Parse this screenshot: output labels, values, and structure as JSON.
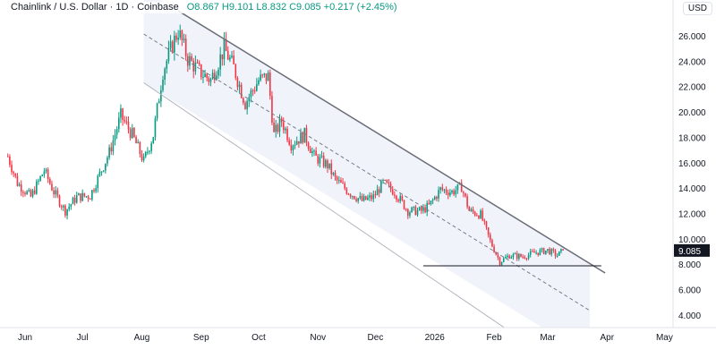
{
  "header": {
    "symbol": "Chainlink / U.S. Dollar · 1D · Coinbase",
    "ohlc": "O8.867 H9.101 L8.832 C9.085 +0.217 (+2.45%)",
    "currency": "USD"
  },
  "colors": {
    "up": "#089981",
    "down": "#f23645",
    "channel": "#787b86",
    "fill": "#f0f3fa"
  },
  "chart_data": {
    "type": "candlestick",
    "title": "Chainlink / U.S. Dollar · 1D · Coinbase",
    "ylim": [
      3,
      28
    ],
    "y_ticks": [
      "4.000",
      "6.000",
      "8.000",
      "10.000",
      "12.000",
      "14.000",
      "16.000",
      "18.000",
      "20.000",
      "22.000",
      "24.000",
      "26.000"
    ],
    "x_ticks": [
      {
        "label": "Jun",
        "day": 0
      },
      {
        "label": "Jul",
        "day": 30
      },
      {
        "label": "Aug",
        "day": 61
      },
      {
        "label": "Sep",
        "day": 92
      },
      {
        "label": "Oct",
        "day": 122
      },
      {
        "label": "Nov",
        "day": 153
      },
      {
        "label": "Dec",
        "day": 183
      },
      {
        "label": "2026",
        "day": 214
      },
      {
        "label": "Feb",
        "day": 245
      },
      {
        "label": "Mar",
        "day": 273
      },
      {
        "label": "Apr",
        "day": 304
      },
      {
        "label": "May",
        "day": 334
      }
    ],
    "xlim_days": [
      -13,
      338
    ],
    "last_price": "9.085",
    "close_anchors": [
      [
        -9,
        16.5
      ],
      [
        -4,
        14.4
      ],
      [
        3,
        13.3
      ],
      [
        10,
        15.4
      ],
      [
        15,
        13.7
      ],
      [
        21,
        12.2
      ],
      [
        27,
        13.3
      ],
      [
        34,
        13.4
      ],
      [
        39,
        15.1
      ],
      [
        44,
        16.8
      ],
      [
        50,
        19.7
      ],
      [
        56,
        18.2
      ],
      [
        62,
        16.1
      ],
      [
        67,
        18.2
      ],
      [
        72,
        23.2
      ],
      [
        77,
        25.3
      ],
      [
        80,
        26.4
      ],
      [
        85,
        24.2
      ],
      [
        91,
        23.2
      ],
      [
        97,
        22.5
      ],
      [
        104,
        25.0
      ],
      [
        109,
        23.5
      ],
      [
        115,
        20.7
      ],
      [
        122,
        22.5
      ],
      [
        127,
        22.8
      ],
      [
        130,
        18.2
      ],
      [
        134,
        19.3
      ],
      [
        139,
        17.5
      ],
      [
        146,
        18.2
      ],
      [
        151,
        16.5
      ],
      [
        158,
        15.8
      ],
      [
        162,
        14.7
      ],
      [
        169,
        13.7
      ],
      [
        176,
        13.0
      ],
      [
        182,
        13.3
      ],
      [
        187,
        14.4
      ],
      [
        193,
        13.7
      ],
      [
        200,
        12.2
      ],
      [
        207,
        12.2
      ],
      [
        211,
        12.6
      ],
      [
        217,
        13.9
      ],
      [
        223,
        13.7
      ],
      [
        228,
        14.1
      ],
      [
        232,
        12.2
      ],
      [
        238,
        11.9
      ],
      [
        243,
        9.8
      ],
      [
        248,
        8.2
      ],
      [
        253,
        8.7
      ],
      [
        260,
        8.6
      ],
      [
        266,
        8.9
      ],
      [
        273,
        9.1
      ],
      [
        278,
        8.7
      ],
      [
        281,
        9.085
      ]
    ],
    "drawings": {
      "channel_upper": [
        [
          80,
          27.97
        ],
        [
          303,
          7.31
        ]
      ],
      "channel_mid": [
        [
          62,
          26.14
        ],
        [
          295,
          4.35
        ]
      ],
      "channel_lower": [
        [
          62,
          22.3
        ],
        [
          267,
          1.3
        ]
      ],
      "support_line": {
        "price": 7.88,
        "from_day": 208,
        "to_day": 301
      }
    }
  }
}
